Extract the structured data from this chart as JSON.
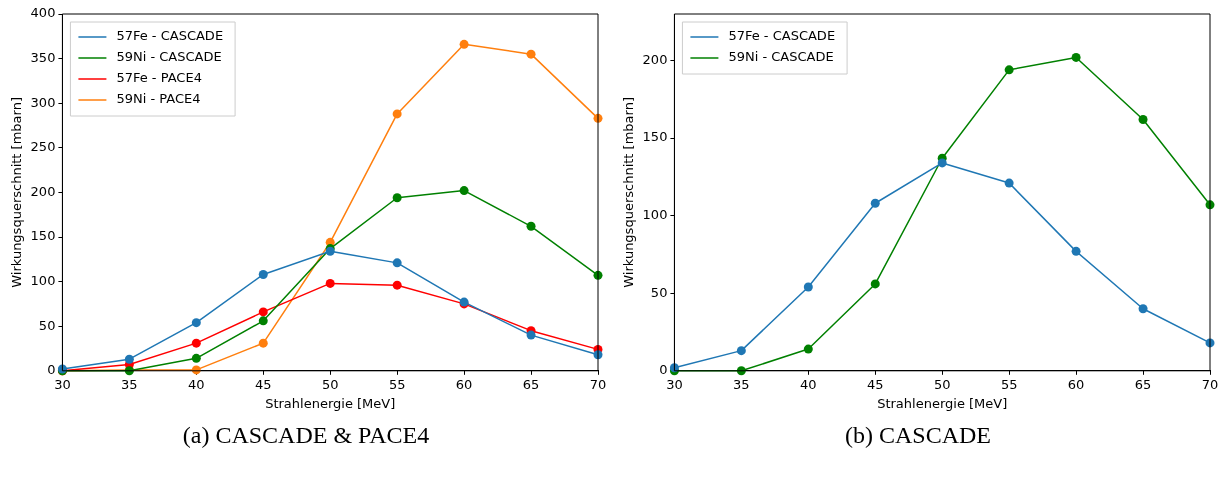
{
  "chart_data": [
    {
      "type": "line",
      "title": "(a) CASCADE & PACE4",
      "xlabel": "Strahlenergie [MeV]",
      "ylabel": "Wirkungsquerschnitt [mbarn]",
      "x": [
        30,
        35,
        40,
        45,
        50,
        55,
        60,
        65,
        70
      ],
      "xlim": [
        30,
        70
      ],
      "xticks": [
        30,
        35,
        40,
        45,
        50,
        55,
        60,
        65,
        70
      ],
      "ylim": [
        0,
        400
      ],
      "yticks": [
        0,
        50,
        100,
        150,
        200,
        250,
        300,
        350,
        400
      ],
      "grid": false,
      "legend": "top left",
      "marker": "circle",
      "series": [
        {
          "name": "57Fe - CASCADE",
          "color": "#1f77b4",
          "values": [
            2,
            13,
            54,
            108,
            134,
            121,
            77,
            40,
            18
          ]
        },
        {
          "name": "59Ni - CASCADE",
          "color": "#008000",
          "values": [
            0,
            0,
            14,
            56,
            137,
            194,
            202,
            162,
            107
          ]
        },
        {
          "name": "57Fe - PACE4",
          "color": "#ff0000",
          "values": [
            0,
            7,
            31,
            66,
            98,
            96,
            75,
            45,
            24
          ]
        },
        {
          "name": "59Ni - PACE4",
          "color": "#ff7f0e",
          "values": [
            0,
            1,
            1,
            31,
            144,
            288,
            366,
            355,
            283
          ]
        }
      ]
    },
    {
      "type": "line",
      "title": "(b) CASCADE",
      "xlabel": "Strahlenergie [MeV]",
      "ylabel": "Wirkungsquerschnitt [mbarn]",
      "x": [
        30,
        35,
        40,
        45,
        50,
        55,
        60,
        65,
        70
      ],
      "xlim": [
        30,
        70
      ],
      "xticks": [
        30,
        35,
        40,
        45,
        50,
        55,
        60,
        65,
        70
      ],
      "ylim": [
        0,
        230
      ],
      "yticks": [
        0,
        50,
        100,
        150,
        200
      ],
      "grid": false,
      "legend": "top left",
      "marker": "circle",
      "series": [
        {
          "name": "57Fe - CASCADE",
          "color": "#1f77b4",
          "values": [
            2,
            13,
            54,
            108,
            134,
            121,
            77,
            40,
            18
          ]
        },
        {
          "name": "59Ni - CASCADE",
          "color": "#008000",
          "values": [
            0,
            0,
            14,
            56,
            137,
            194,
            202,
            162,
            107
          ]
        }
      ]
    }
  ]
}
